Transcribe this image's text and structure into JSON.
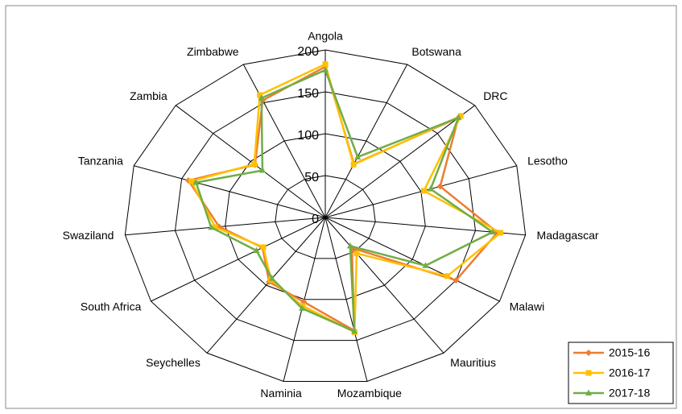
{
  "chart_data": {
    "type": "radar",
    "categories": [
      "Angola",
      "Botswana",
      "DRC",
      "Lesotho",
      "Madagascar",
      "Malawi",
      "Mauritius",
      "Mozambique",
      "Naminia",
      "Seychelles",
      "South Africa",
      "Swaziland",
      "Tanzania",
      "Zambia",
      "Zimbabwe"
    ],
    "series": [
      {
        "name": "2015-16",
        "color": "#ED7D31",
        "values": [
          180,
          70,
          178,
          120,
          172,
          150,
          45,
          138,
          103,
          95,
          72,
          106,
          143,
          94,
          153
        ]
      },
      {
        "name": "2016-17",
        "color": "#FFC000",
        "values": [
          183,
          69,
          181,
          103,
          175,
          140,
          53,
          140,
          108,
          92,
          71,
          110,
          140,
          95,
          160
        ]
      },
      {
        "name": "2017-18",
        "color": "#70AD47",
        "values": [
          176,
          79,
          178,
          110,
          167,
          115,
          42,
          139,
          111,
          90,
          79,
          114,
          135,
          84,
          156
        ]
      }
    ],
    "rlim": [
      0,
      200
    ],
    "rticks": [
      0,
      50,
      100,
      150,
      200
    ],
    "grid": true,
    "legend": "lower right"
  }
}
